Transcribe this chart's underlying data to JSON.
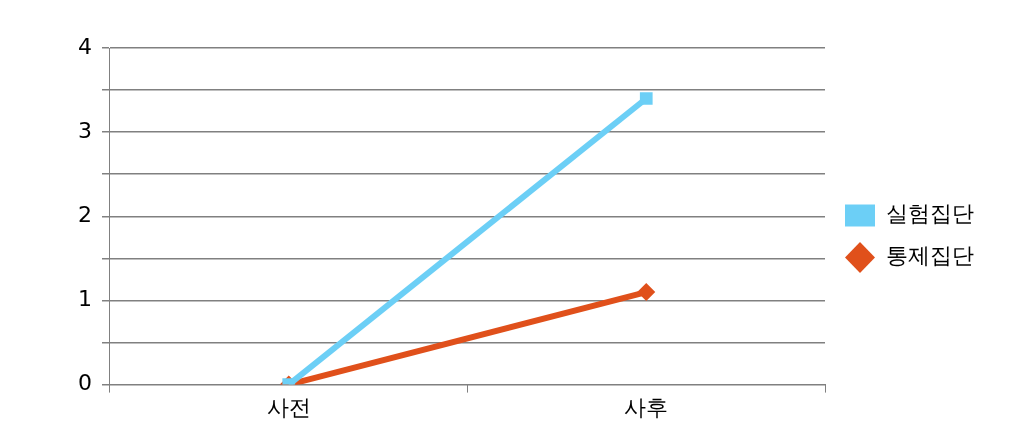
{
  "chart_data": {
    "type": "line",
    "categories": [
      "사전",
      "사후"
    ],
    "series": [
      {
        "name": "실험집단",
        "color": "#6ccff6",
        "marker": "square",
        "values": [
          0,
          3.4
        ]
      },
      {
        "name": "통제집단",
        "color": "#e0501b",
        "marker": "diamond",
        "values": [
          0,
          1.1
        ]
      }
    ],
    "ylim": [
      0,
      4
    ],
    "yticks": [
      0,
      {
        "value": 0.5,
        "label": null
      },
      1,
      {
        "value": 1.5,
        "label": null
      },
      2,
      {
        "value": 2.5,
        "label": null
      },
      3,
      {
        "value": 3.5,
        "label": null
      },
      4
    ],
    "grid": "y",
    "legend": "right"
  }
}
